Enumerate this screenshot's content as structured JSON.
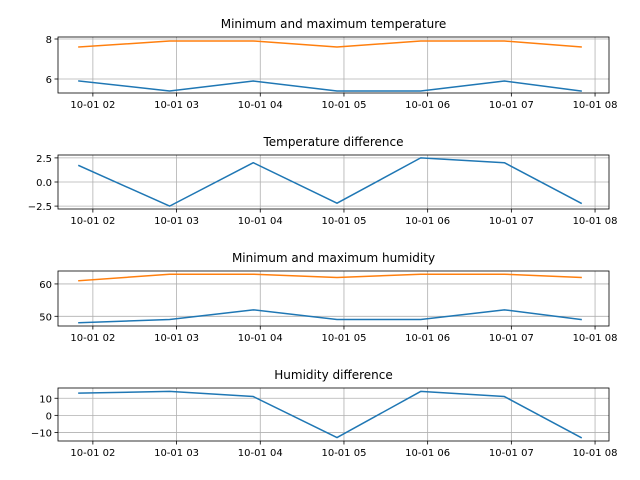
{
  "chart_data": [
    {
      "type": "line",
      "title": "Minimum and maximum temperature",
      "x": [
        "10-01 01:50",
        "10-01 02:55",
        "10-01 03:55",
        "10-01 04:55",
        "10-01 05:55",
        "10-01 06:55",
        "10-01 07:50"
      ],
      "xticks": [
        "10-01 02",
        "10-01 03",
        "10-01 04",
        "10-01 05",
        "10-01 06",
        "10-01 07",
        "10-01 08"
      ],
      "xlim": [
        "10-01 01:35",
        "10-01 08:10"
      ],
      "yticks": [
        6,
        8
      ],
      "ylim": [
        5.3,
        8.1
      ],
      "grid": true,
      "series": [
        {
          "values": [
            5.9,
            5.4,
            5.9,
            5.4,
            5.4,
            5.9,
            5.4
          ],
          "color": "#1f77b4"
        },
        {
          "values": [
            7.6,
            7.9,
            7.9,
            7.6,
            7.9,
            7.9,
            7.6
          ],
          "color": "#ff7f0e"
        }
      ]
    },
    {
      "type": "line",
      "title": "Temperature difference",
      "x": [
        "10-01 01:50",
        "10-01 02:55",
        "10-01 03:55",
        "10-01 04:55",
        "10-01 05:55",
        "10-01 06:55",
        "10-01 07:50"
      ],
      "xticks": [
        "10-01 02",
        "10-01 03",
        "10-01 04",
        "10-01 05",
        "10-01 06",
        "10-01 07",
        "10-01 08"
      ],
      "xlim": [
        "10-01 01:35",
        "10-01 08:10"
      ],
      "yticks": [
        2.5,
        0.0,
        -2.5
      ],
      "ytick_labels": [
        "2.5",
        "0.0",
        "−2.5"
      ],
      "ylim": [
        -2.8,
        2.8
      ],
      "grid": true,
      "series": [
        {
          "values": [
            1.7,
            -2.5,
            2.0,
            -2.2,
            2.5,
            2.0,
            -2.2
          ],
          "color": "#1f77b4"
        }
      ]
    },
    {
      "type": "line",
      "title": "Minimum and maximum humidity",
      "x": [
        "10-01 01:50",
        "10-01 02:55",
        "10-01 03:55",
        "10-01 04:55",
        "10-01 05:55",
        "10-01 06:55",
        "10-01 07:50"
      ],
      "xticks": [
        "10-01 02",
        "10-01 03",
        "10-01 04",
        "10-01 05",
        "10-01 06",
        "10-01 07",
        "10-01 08"
      ],
      "xlim": [
        "10-01 01:35",
        "10-01 08:10"
      ],
      "yticks": [
        50,
        60
      ],
      "ylim": [
        47,
        64
      ],
      "grid": true,
      "series": [
        {
          "values": [
            48,
            49,
            52,
            49,
            49,
            52,
            49
          ],
          "color": "#1f77b4"
        },
        {
          "values": [
            61,
            63,
            63,
            62,
            63,
            63,
            62
          ],
          "color": "#ff7f0e"
        }
      ]
    },
    {
      "type": "line",
      "title": "Humidity difference",
      "x": [
        "10-01 01:50",
        "10-01 02:55",
        "10-01 03:55",
        "10-01 04:55",
        "10-01 05:55",
        "10-01 06:55",
        "10-01 07:50"
      ],
      "xticks": [
        "10-01 02",
        "10-01 03",
        "10-01 04",
        "10-01 05",
        "10-01 06",
        "10-01 07",
        "10-01 08"
      ],
      "xlim": [
        "10-01 01:35",
        "10-01 08:10"
      ],
      "yticks": [
        10,
        0,
        -10
      ],
      "ytick_labels": [
        "10",
        "0",
        "−10"
      ],
      "ylim": [
        -15,
        16
      ],
      "grid": true,
      "series": [
        {
          "values": [
            13,
            14,
            11,
            -13,
            14,
            11,
            -13
          ],
          "color": "#1f77b4"
        }
      ]
    }
  ]
}
